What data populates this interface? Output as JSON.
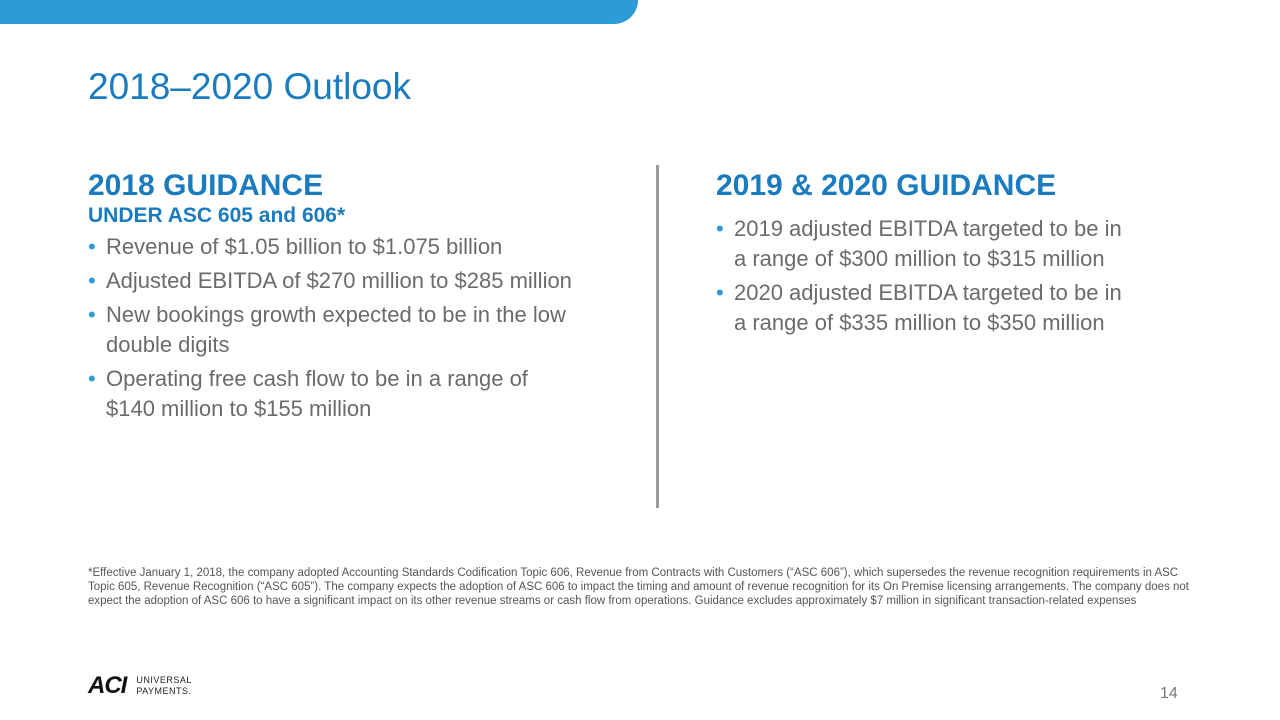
{
  "slide": {
    "title": "2018–2020 Outlook",
    "page_number": "14"
  },
  "left": {
    "heading": "2018 GUIDANCE",
    "subheading": "UNDER ASC 605 and 606*",
    "bullets": [
      "Revenue of $1.05 billion to $1.075 billion",
      "Adjusted EBITDA of $270 million to $285 million",
      "New bookings growth expected to be in the low double digits",
      "Operating free cash flow to be in a range of $140 million to $155 million"
    ]
  },
  "right": {
    "heading": "2019 & 2020 GUIDANCE",
    "bullets": [
      "2019 adjusted EBITDA targeted to be in a range of $300 million to $315 million",
      "2020 adjusted EBITDA targeted to be in a range of $335 million to $350 million"
    ]
  },
  "footnote": "*Effective January 1, 2018, the company adopted Accounting Standards Codification Topic 606, Revenue from Contracts with Customers (“ASC 606”), which supersedes the revenue recognition requirements in ASC Topic 605, Revenue Recognition (“ASC 605”). The company expects the adoption of ASC 606 to impact the timing and amount of revenue recognition for its On Premise licensing arrangements. The company does not expect the adoption of ASC 606 to have a significant impact on its other revenue streams or cash flow from operations. Guidance excludes approximately $7 million in significant transaction-related expenses",
  "logo": {
    "mark": "ACI",
    "line1": "UNIVERSAL",
    "line2": "PAYMENTS."
  },
  "bullet_glyph": "•",
  "colors": {
    "accent": "#1a7cbf",
    "bar": "#2e9bd6",
    "body_text": "#6b6b6b",
    "divider": "#9a9a9a"
  }
}
